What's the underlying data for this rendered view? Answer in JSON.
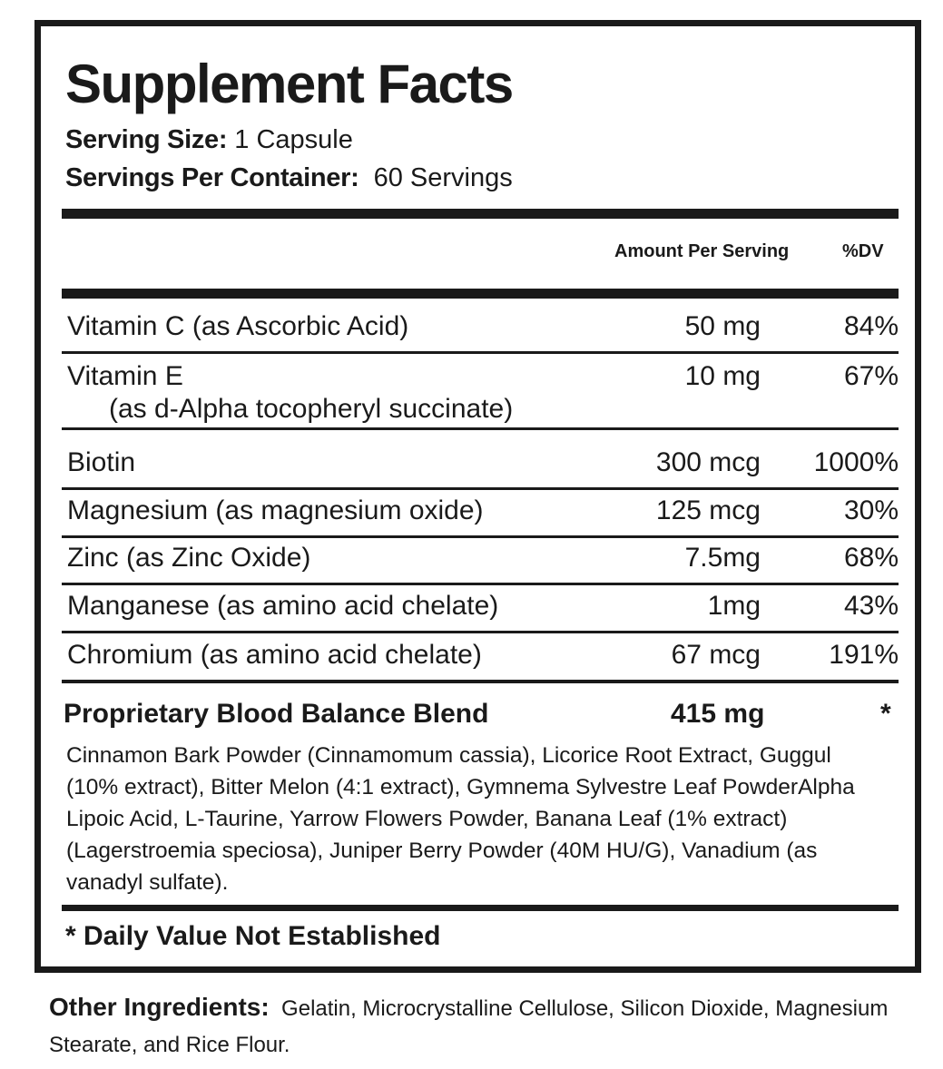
{
  "title": "Supplement Facts",
  "serving_size": {
    "label": "Serving Size:",
    "value": "1 Capsule"
  },
  "servings_per_container": {
    "label": "Servings Per Container:",
    "value": "60 Servings"
  },
  "columns": {
    "amount": "Amount Per Serving",
    "dv": "%DV"
  },
  "rows": [
    {
      "name": "Vitamin C (as Ascorbic Acid)",
      "name2": "",
      "amount": "50 mg",
      "dv": "84%"
    },
    {
      "name": "Vitamin E",
      "name2": "(as d-Alpha tocopheryl succinate)",
      "amount": "10 mg",
      "dv": "67%"
    },
    {
      "name": "Biotin",
      "name2": "",
      "amount": "300 mcg",
      "dv": "1000%"
    },
    {
      "name": "Magnesium (as magnesium oxide)",
      "name2": "",
      "amount": "125 mcg",
      "dv": "30%"
    },
    {
      "name": "Zinc (as Zinc Oxide)",
      "name2": "",
      "amount": "7.5mg",
      "dv": "68%"
    },
    {
      "name": "Manganese (as amino acid chelate)",
      "name2": "",
      "amount": "1mg",
      "dv": "43%"
    },
    {
      "name": "Chromium (as amino acid chelate)",
      "name2": "",
      "amount": "67 mcg",
      "dv": "191%"
    }
  ],
  "blend": {
    "name": "Proprietary Blood Balance Blend",
    "amount": "415 mg",
    "dv": "*",
    "ingredients": "Cinnamon Bark Powder (Cinnamomum cassia), Licorice Root Extract, Guggul (10% extract), Bitter Melon (4:1 extract), Gymnema Sylvestre Leaf PowderAlpha Lipoic Acid, L-Taurine, Yarrow Flowers Powder, Banana Leaf (1% extract) (Lagerstroemia speciosa), Juniper Berry Powder (40M HU/G), Vanadium (as vanadyl sulfate)."
  },
  "footnote": "* Daily Value Not Established",
  "other_ingredients": {
    "label": "Other Ingredients:",
    "value": "Gelatin, Microcrystalline Cellulose, Silicon Dioxide, Magnesium Stearate, and Rice Flour."
  }
}
